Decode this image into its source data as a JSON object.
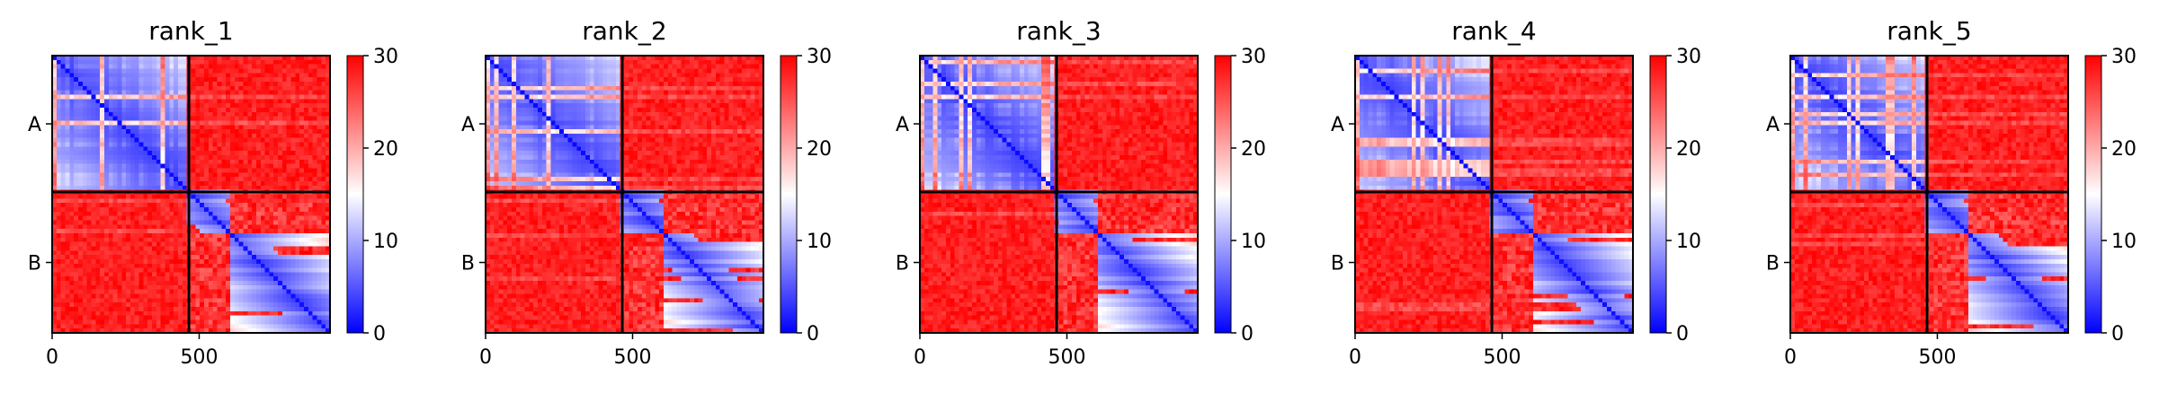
{
  "chart_data": [
    {
      "type": "heatmap",
      "title": "rank_1",
      "x_ticks": [
        "0",
        "500"
      ],
      "x_tick_values": [
        0,
        500
      ],
      "x_range": [
        0,
        945
      ],
      "y_ticks": [
        "A",
        "B"
      ],
      "chain_boundary": 465,
      "colorbar": {
        "cmap": "bwr",
        "vmin": 0,
        "vmax": 30,
        "ticks": [
          "0",
          "10",
          "20",
          "30"
        ],
        "tick_values": [
          0,
          10,
          20,
          30
        ]
      }
    },
    {
      "type": "heatmap",
      "title": "rank_2",
      "x_ticks": [
        "0",
        "500"
      ],
      "x_tick_values": [
        0,
        500
      ],
      "x_range": [
        0,
        945
      ],
      "y_ticks": [
        "A",
        "B"
      ],
      "chain_boundary": 465,
      "colorbar": {
        "cmap": "bwr",
        "vmin": 0,
        "vmax": 30,
        "ticks": [
          "0",
          "10",
          "20",
          "30"
        ],
        "tick_values": [
          0,
          10,
          20,
          30
        ]
      }
    },
    {
      "type": "heatmap",
      "title": "rank_3",
      "x_ticks": [
        "0",
        "500"
      ],
      "x_tick_values": [
        0,
        500
      ],
      "x_range": [
        0,
        945
      ],
      "y_ticks": [
        "A",
        "B"
      ],
      "chain_boundary": 465,
      "colorbar": {
        "cmap": "bwr",
        "vmin": 0,
        "vmax": 30,
        "ticks": [
          "0",
          "10",
          "20",
          "30"
        ],
        "tick_values": [
          0,
          10,
          20,
          30
        ]
      }
    },
    {
      "type": "heatmap",
      "title": "rank_4",
      "x_ticks": [
        "0",
        "500"
      ],
      "x_tick_values": [
        0,
        500
      ],
      "x_range": [
        0,
        945
      ],
      "y_ticks": [
        "A",
        "B"
      ],
      "chain_boundary": 465,
      "colorbar": {
        "cmap": "bwr",
        "vmin": 0,
        "vmax": 30,
        "ticks": [
          "0",
          "10",
          "20",
          "30"
        ],
        "tick_values": [
          0,
          10,
          20,
          30
        ]
      }
    },
    {
      "type": "heatmap",
      "title": "rank_5",
      "x_ticks": [
        "0",
        "500"
      ],
      "x_tick_values": [
        0,
        500
      ],
      "x_range": [
        0,
        945
      ],
      "y_ticks": [
        "A",
        "B"
      ],
      "chain_boundary": 465,
      "colorbar": {
        "cmap": "bwr",
        "vmin": 0,
        "vmax": 30,
        "ticks": [
          "0",
          "10",
          "20",
          "30"
        ],
        "tick_values": [
          0,
          10,
          20,
          30
        ]
      }
    }
  ],
  "colors": {
    "low": "#0000ff",
    "mid": "#ffffff",
    "high": "#ff0000",
    "frame": "#000000"
  }
}
